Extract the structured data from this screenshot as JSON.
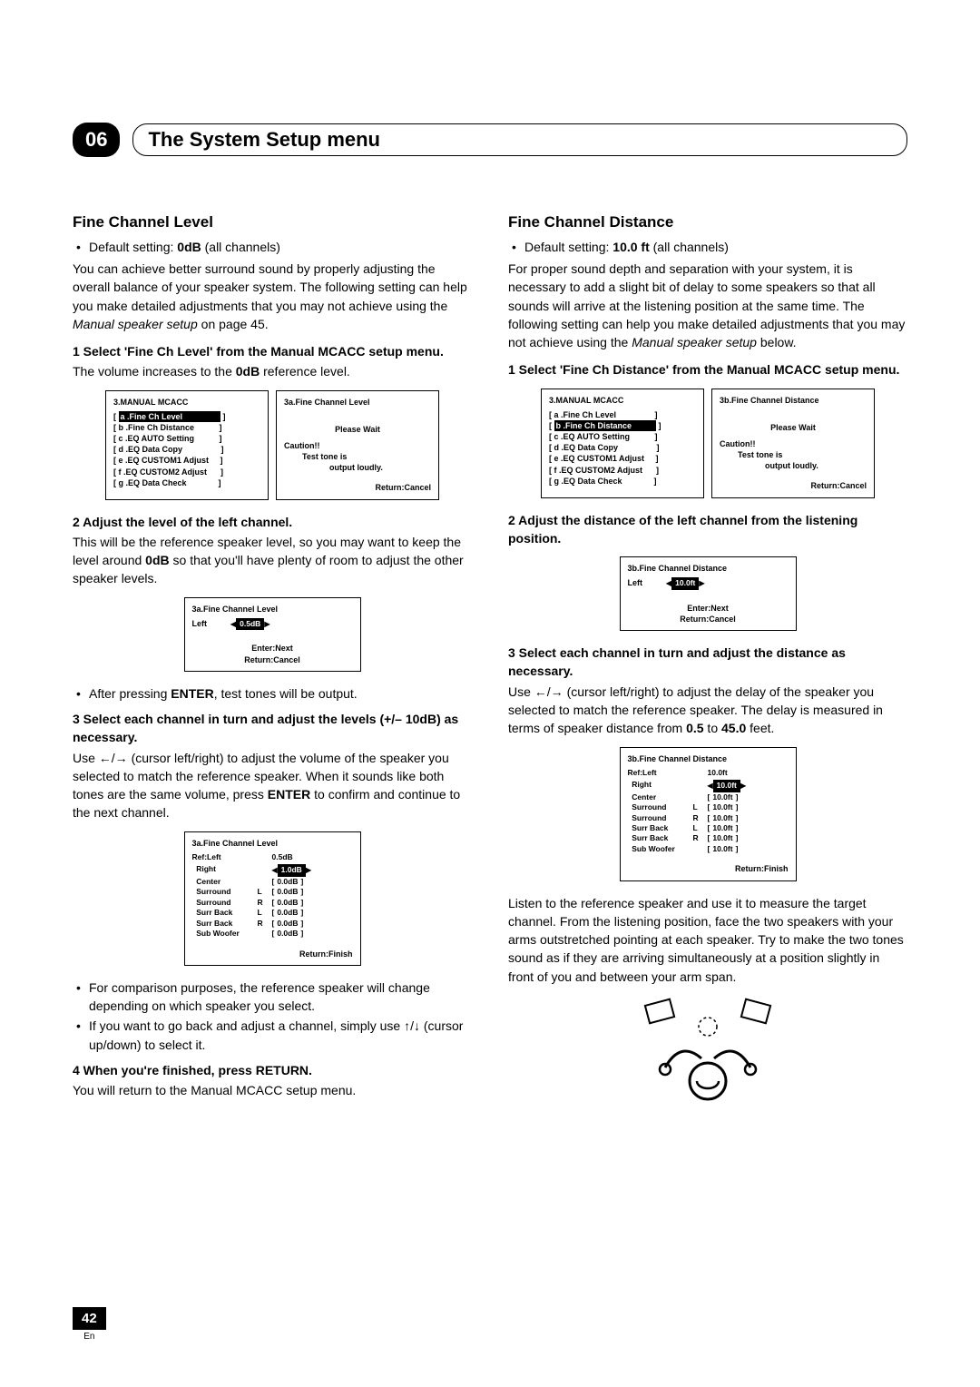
{
  "chapter": {
    "num": "06",
    "title": "The System Setup menu"
  },
  "page": {
    "num": "42",
    "lang": "En"
  },
  "left": {
    "section": "Fine Channel Level",
    "default": "Default setting: ",
    "default_val": "0dB",
    "default_tail": " (all channels)",
    "intro1": "You can achieve better surround sound by properly adjusting the overall balance of your speaker system. The following setting can help you make detailed adjustments that you may not achieve using the ",
    "intro1_it": "Manual speaker setup",
    "intro1_tail": " on page 45.",
    "step1": "1   Select 'Fine Ch Level' from the Manual MCACC setup menu.",
    "step1_body_a": "The volume increases to the ",
    "step1_body_b": "0dB",
    "step1_body_c": " reference level.",
    "menu1_left_title": "3.MANUAL MCACC",
    "menu1_items": [
      "[ a .Fine Ch Level                 ]",
      "[ b .Fine Ch Distance           ]",
      "[ c .EQ AUTO Setting           ]",
      "[ d .EQ Data Copy                 ]",
      "[ e .EQ CUSTOM1 Adjust     ]",
      "[ f .EQ CUSTOM2 Adjust      ]",
      "[ g .EQ Data Check              ]"
    ],
    "menu1_hl_index": 0,
    "menu1_right_title": "3a.Fine Channel Level",
    "menu1_wait": "Please Wait",
    "menu1_caution": "Caution!!",
    "menu1_tone1": "Test tone is",
    "menu1_tone2": "output loudly.",
    "menu1_return": "Return:Cancel",
    "step2": "2   Adjust the level of the left channel.",
    "step2_body_a": "This will be the reference speaker level, so you may want to keep the level around ",
    "step2_body_b": "0dB",
    "step2_body_c": " so that you'll have plenty of room to adjust the other speaker levels.",
    "menu2_title": "3a.Fine Channel Level",
    "menu2_left": "Left",
    "menu2_val": "  0.5dB",
    "menu2_enter": "Enter:Next",
    "menu2_return": "Return:Cancel",
    "after_enter_a": "After pressing ",
    "after_enter_b": "ENTER",
    "after_enter_c": ", test tones will be output.",
    "step3": "3   Select each channel in turn and adjust the levels (+/– 10dB) as necessary.",
    "step3_body_a": "Use ←/→ (cursor left/right) to adjust the volume of the speaker you selected to match the reference speaker. When it sounds like both tones are the same volume, press ",
    "step3_body_b": "ENTER",
    "step3_body_c": " to confirm and continue to the next channel.",
    "menu3_title": "3a.Fine Channel Level",
    "menu3_ref": "Ref:Left",
    "menu3_refval": "  0.5dB",
    "menu3_rows": [
      {
        "name": "Right",
        "side": "",
        "val": "  1.0dB",
        "hl": true
      },
      {
        "name": "Center",
        "side": "",
        "val": "  0.0dB"
      },
      {
        "name": "Surround",
        "side": "L",
        "val": "  0.0dB"
      },
      {
        "name": "Surround",
        "side": "R",
        "val": "  0.0dB"
      },
      {
        "name": "Surr Back",
        "side": "L",
        "val": "  0.0dB"
      },
      {
        "name": "Surr Back",
        "side": "R",
        "val": "  0.0dB"
      },
      {
        "name": "Sub Woofer",
        "side": "",
        "val": "  0.0dB"
      }
    ],
    "menu3_return": "Return:Finish",
    "bullet2": "For comparison purposes, the reference speaker will change depending on which speaker you select.",
    "bullet3": "If you want to go back and adjust a channel, simply use ↑/↓ (cursor up/down) to select it.",
    "step4": "4   When you're finished, press RETURN.",
    "step4_body": "You will return to the Manual MCACC setup menu."
  },
  "right": {
    "section": "Fine Channel Distance",
    "default": "Default setting: ",
    "default_val": "10.0 ft",
    "default_tail": " (all channels)",
    "intro1": "For proper sound depth and separation with your system, it is necessary to add a slight bit of delay to some speakers so that all sounds will arrive at the listening position at the same time. The following setting can help you make detailed adjustments that you may not achieve using the ",
    "intro1_it": "Manual speaker setup",
    "intro1_tail": " below.",
    "step1": "1   Select 'Fine Ch Distance' from the Manual MCACC setup menu.",
    "menu1_left_title": "3.MANUAL MCACC",
    "menu1_hl_index": 1,
    "menu1_right_title": "3b.Fine Channel Distance",
    "menu1_wait": "Please Wait",
    "menu1_caution": "Caution!!",
    "menu1_tone1": "Test tone is",
    "menu1_tone2": "output loudly.",
    "menu1_return": "Return:Cancel",
    "step2": "2   Adjust the distance of the left channel from the listening position.",
    "menu2_title": "3b.Fine Channel Distance",
    "menu2_left": "Left",
    "menu2_val": " 10.0ft ",
    "menu2_enter": "Enter:Next",
    "menu2_return": "Return:Cancel",
    "step3": "3   Select each channel in turn and adjust the distance as necessary.",
    "step3_body_a": "Use ←/→ (cursor left/right) to adjust the delay of the speaker you selected to match the reference speaker. The delay is measured in terms of speaker distance from ",
    "step3_body_b": "0.5",
    "step3_body_c": " to ",
    "step3_body_d": "45.0",
    "step3_body_e": " feet.",
    "menu3_title": "3b.Fine Channel Distance",
    "menu3_ref": "Ref:Left",
    "menu3_refval": "10.0ft",
    "menu3_rows": [
      {
        "name": "Right",
        "side": "",
        "val": " 10.0ft ",
        "hl": true
      },
      {
        "name": "Center",
        "side": "",
        "val": " 10.0ft "
      },
      {
        "name": "Surround",
        "side": "L",
        "val": " 10.0ft "
      },
      {
        "name": "Surround",
        "side": "R",
        "val": " 10.0ft "
      },
      {
        "name": "Surr Back",
        "side": "L",
        "val": " 10.0ft "
      },
      {
        "name": "Surr Back",
        "side": "R",
        "val": " 10.0ft "
      },
      {
        "name": "Sub Woofer",
        "side": "",
        "val": " 10.0ft "
      }
    ],
    "menu3_return": "Return:Finish",
    "outro": "Listen to the reference speaker and use it to measure the target channel. From the listening position, face the two speakers with your arms outstretched pointing at each speaker. Try to make the two tones sound as if they are arriving simultaneously at a position slightly in front of you and between your arm span."
  }
}
